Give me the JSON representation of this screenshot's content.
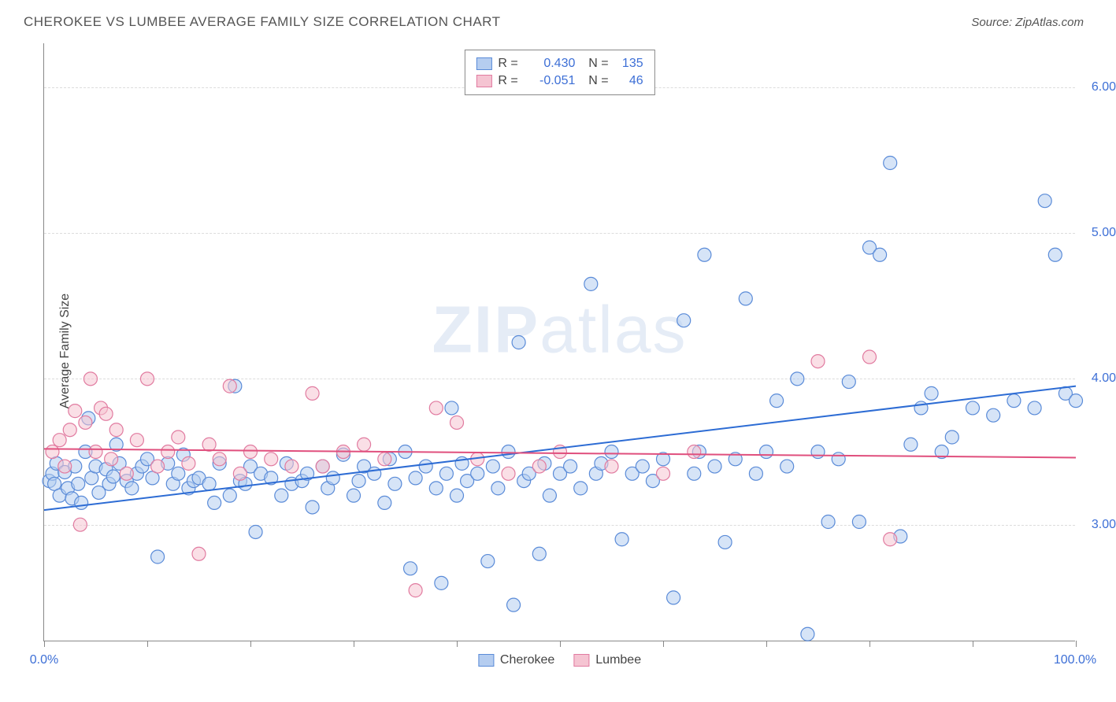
{
  "title": "CHEROKEE VS LUMBEE AVERAGE FAMILY SIZE CORRELATION CHART",
  "source_prefix": "Source: ",
  "source_name": "ZipAtlas.com",
  "watermark_a": "ZIP",
  "watermark_b": "atlas",
  "chart": {
    "type": "scatter",
    "ylabel": "Average Family Size",
    "xlim": [
      0,
      100
    ],
    "ylim": [
      2.2,
      6.3
    ],
    "xtick_positions": [
      0,
      10,
      20,
      30,
      40,
      50,
      60,
      70,
      80,
      90,
      100
    ],
    "xtick_labels": {
      "0": "0.0%",
      "100": "100.0%"
    },
    "ytick_positions": [
      3.0,
      4.0,
      5.0,
      6.0
    ],
    "ytick_labels": [
      "3.00",
      "4.00",
      "5.00",
      "6.00"
    ],
    "grid_color": "#dcdcdc",
    "axis_color": "#888888",
    "background_color": "#ffffff",
    "marker_radius": 8.5,
    "marker_opacity": 0.55,
    "line_width": 2,
    "series": [
      {
        "name": "Cherokee",
        "color_fill": "#b5cdf0",
        "color_stroke": "#5a8bd8",
        "line_color": "#2d6cd4",
        "R": "0.430",
        "N": "135",
        "trend": {
          "x1": 0,
          "y1": 3.1,
          "x2": 100,
          "y2": 3.95
        },
        "points": [
          [
            0.5,
            3.3
          ],
          [
            0.8,
            3.35
          ],
          [
            1,
            3.28
          ],
          [
            1.2,
            3.42
          ],
          [
            1.5,
            3.2
          ],
          [
            2,
            3.36
          ],
          [
            2.3,
            3.25
          ],
          [
            2.7,
            3.18
          ],
          [
            3,
            3.4
          ],
          [
            3.3,
            3.28
          ],
          [
            3.6,
            3.15
          ],
          [
            4,
            3.5
          ],
          [
            4.3,
            3.73
          ],
          [
            4.6,
            3.32
          ],
          [
            5,
            3.4
          ],
          [
            5.3,
            3.22
          ],
          [
            6,
            3.38
          ],
          [
            6.3,
            3.28
          ],
          [
            6.7,
            3.33
          ],
          [
            7,
            3.55
          ],
          [
            7.3,
            3.42
          ],
          [
            8,
            3.3
          ],
          [
            8.5,
            3.25
          ],
          [
            9,
            3.35
          ],
          [
            9.5,
            3.4
          ],
          [
            10,
            3.45
          ],
          [
            10.5,
            3.32
          ],
          [
            11,
            2.78
          ],
          [
            12,
            3.42
          ],
          [
            12.5,
            3.28
          ],
          [
            13,
            3.35
          ],
          [
            13.5,
            3.48
          ],
          [
            14,
            3.25
          ],
          [
            14.5,
            3.3
          ],
          [
            15,
            3.32
          ],
          [
            16,
            3.28
          ],
          [
            16.5,
            3.15
          ],
          [
            17,
            3.42
          ],
          [
            18,
            3.2
          ],
          [
            18.5,
            3.95
          ],
          [
            19,
            3.3
          ],
          [
            19.5,
            3.28
          ],
          [
            20,
            3.4
          ],
          [
            20.5,
            2.95
          ],
          [
            21,
            3.35
          ],
          [
            22,
            3.32
          ],
          [
            23,
            3.2
          ],
          [
            23.5,
            3.42
          ],
          [
            24,
            3.28
          ],
          [
            25,
            3.3
          ],
          [
            25.5,
            3.35
          ],
          [
            26,
            3.12
          ],
          [
            27,
            3.4
          ],
          [
            27.5,
            3.25
          ],
          [
            28,
            3.32
          ],
          [
            29,
            3.48
          ],
          [
            30,
            3.2
          ],
          [
            30.5,
            3.3
          ],
          [
            31,
            3.4
          ],
          [
            32,
            3.35
          ],
          [
            33,
            3.15
          ],
          [
            33.5,
            3.45
          ],
          [
            34,
            3.28
          ],
          [
            35,
            3.5
          ],
          [
            35.5,
            2.7
          ],
          [
            36,
            3.32
          ],
          [
            37,
            3.4
          ],
          [
            38,
            3.25
          ],
          [
            38.5,
            2.6
          ],
          [
            39,
            3.35
          ],
          [
            39.5,
            3.8
          ],
          [
            40,
            3.2
          ],
          [
            40.5,
            3.42
          ],
          [
            41,
            3.3
          ],
          [
            42,
            3.35
          ],
          [
            43,
            2.75
          ],
          [
            43.5,
            3.4
          ],
          [
            44,
            3.25
          ],
          [
            45,
            3.5
          ],
          [
            45.5,
            2.45
          ],
          [
            46,
            4.25
          ],
          [
            46.5,
            3.3
          ],
          [
            47,
            3.35
          ],
          [
            48,
            2.8
          ],
          [
            48.5,
            3.42
          ],
          [
            49,
            3.2
          ],
          [
            50,
            3.35
          ],
          [
            51,
            3.4
          ],
          [
            52,
            3.25
          ],
          [
            53,
            4.65
          ],
          [
            53.5,
            3.35
          ],
          [
            54,
            3.42
          ],
          [
            55,
            3.5
          ],
          [
            56,
            2.9
          ],
          [
            57,
            3.35
          ],
          [
            58,
            3.4
          ],
          [
            59,
            3.3
          ],
          [
            60,
            3.45
          ],
          [
            61,
            2.5
          ],
          [
            62,
            4.4
          ],
          [
            63,
            3.35
          ],
          [
            63.5,
            3.5
          ],
          [
            64,
            4.85
          ],
          [
            65,
            3.4
          ],
          [
            66,
            2.88
          ],
          [
            67,
            3.45
          ],
          [
            68,
            4.55
          ],
          [
            69,
            3.35
          ],
          [
            70,
            3.5
          ],
          [
            71,
            3.85
          ],
          [
            72,
            3.4
          ],
          [
            73,
            4.0
          ],
          [
            74,
            2.25
          ],
          [
            75,
            3.5
          ],
          [
            76,
            3.02
          ],
          [
            77,
            3.45
          ],
          [
            78,
            3.98
          ],
          [
            79,
            3.02
          ],
          [
            80,
            4.9
          ],
          [
            81,
            4.85
          ],
          [
            82,
            5.48
          ],
          [
            83,
            2.92
          ],
          [
            84,
            3.55
          ],
          [
            85,
            3.8
          ],
          [
            86,
            3.9
          ],
          [
            87,
            3.5
          ],
          [
            88,
            3.6
          ],
          [
            90,
            3.8
          ],
          [
            92,
            3.75
          ],
          [
            94,
            3.85
          ],
          [
            96,
            3.8
          ],
          [
            97,
            5.22
          ],
          [
            98,
            4.85
          ],
          [
            99,
            3.9
          ],
          [
            100,
            3.85
          ]
        ]
      },
      {
        "name": "Lumbee",
        "color_fill": "#f5c4d2",
        "color_stroke": "#e17ba0",
        "line_color": "#e04f7d",
        "R": "-0.051",
        "N": "46",
        "trend": {
          "x1": 0,
          "y1": 3.52,
          "x2": 100,
          "y2": 3.46
        },
        "points": [
          [
            0.8,
            3.5
          ],
          [
            1.5,
            3.58
          ],
          [
            2,
            3.4
          ],
          [
            2.5,
            3.65
          ],
          [
            3,
            3.78
          ],
          [
            3.5,
            3.0
          ],
          [
            4,
            3.7
          ],
          [
            4.5,
            4.0
          ],
          [
            5,
            3.5
          ],
          [
            5.5,
            3.8
          ],
          [
            6,
            3.76
          ],
          [
            6.5,
            3.45
          ],
          [
            7,
            3.65
          ],
          [
            8,
            3.35
          ],
          [
            9,
            3.58
          ],
          [
            10,
            4.0
          ],
          [
            11,
            3.4
          ],
          [
            12,
            3.5
          ],
          [
            13,
            3.6
          ],
          [
            14,
            3.42
          ],
          [
            15,
            2.8
          ],
          [
            16,
            3.55
          ],
          [
            17,
            3.45
          ],
          [
            18,
            3.95
          ],
          [
            19,
            3.35
          ],
          [
            20,
            3.5
          ],
          [
            22,
            3.45
          ],
          [
            24,
            3.4
          ],
          [
            26,
            3.9
          ],
          [
            27,
            3.4
          ],
          [
            29,
            3.5
          ],
          [
            31,
            3.55
          ],
          [
            33,
            3.45
          ],
          [
            36,
            2.55
          ],
          [
            38,
            3.8
          ],
          [
            40,
            3.7
          ],
          [
            42,
            3.45
          ],
          [
            45,
            3.35
          ],
          [
            48,
            3.4
          ],
          [
            50,
            3.5
          ],
          [
            55,
            3.4
          ],
          [
            60,
            3.35
          ],
          [
            63,
            3.5
          ],
          [
            75,
            4.12
          ],
          [
            80,
            4.15
          ],
          [
            82,
            2.9
          ]
        ]
      }
    ]
  }
}
